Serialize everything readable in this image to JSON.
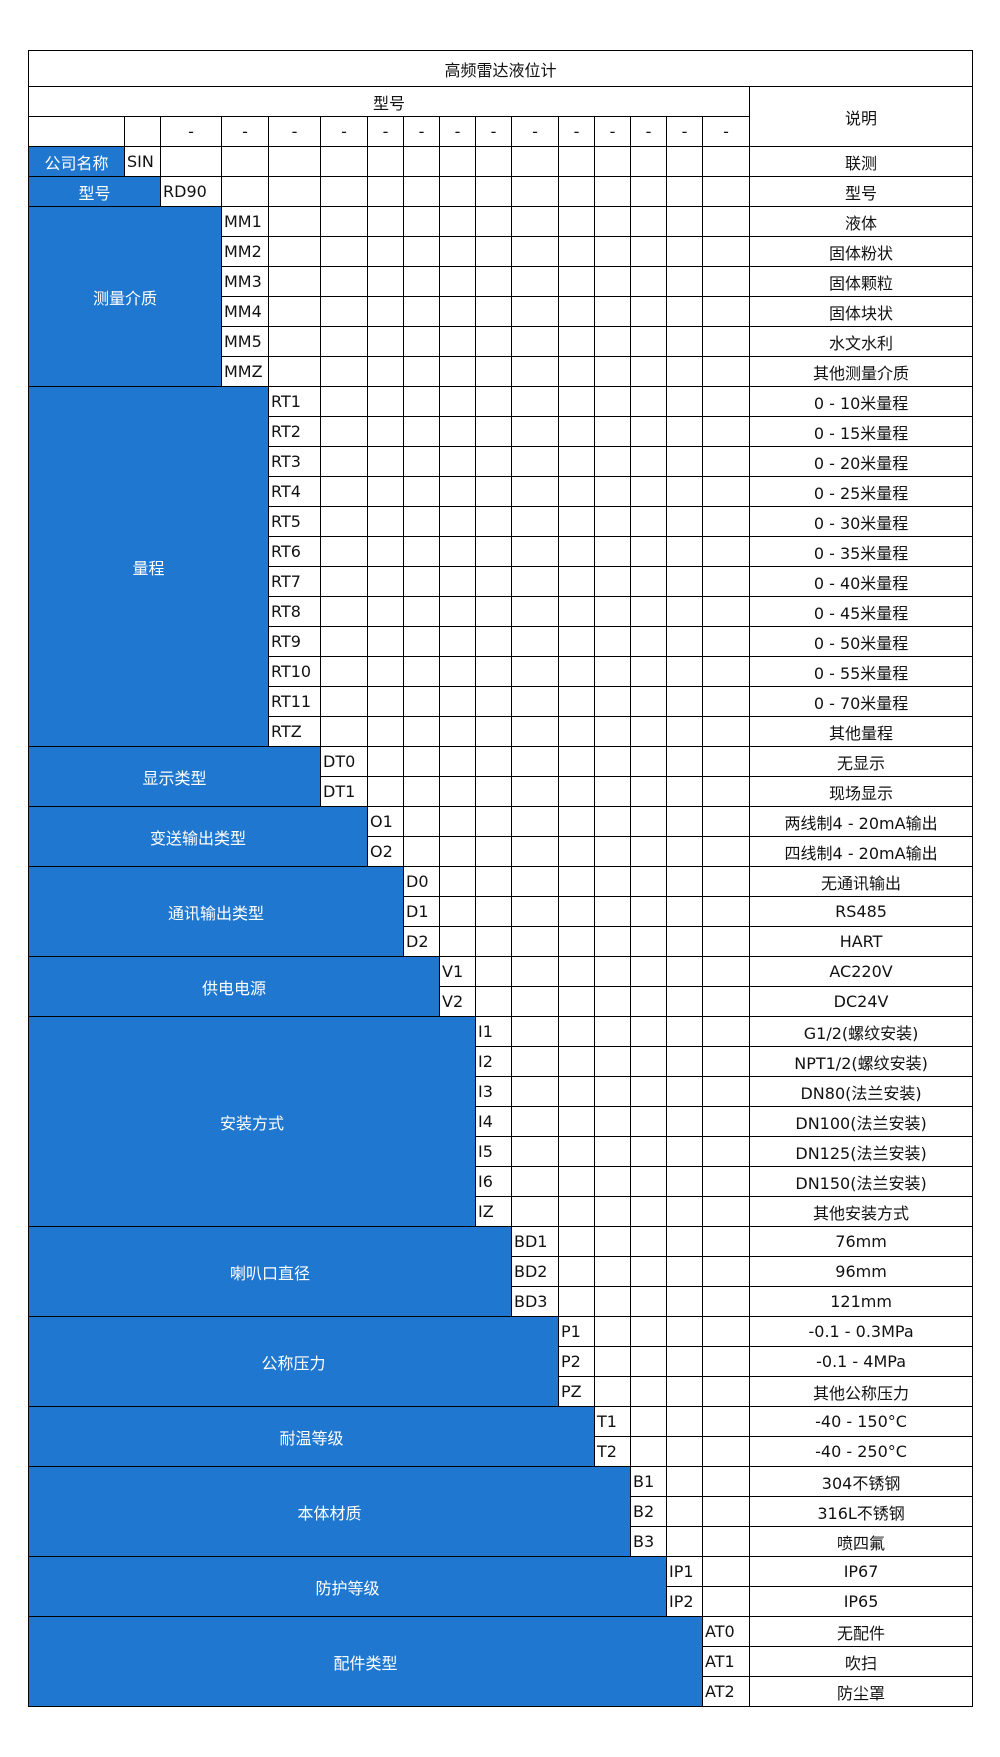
{
  "title": "高频雷达液位计",
  "header": {
    "model_label": "型号",
    "desc_label": "说明",
    "dash": "-"
  },
  "colors": {
    "label_bg": "#1f77d0",
    "border": "#000000"
  },
  "company": {
    "label": "公司名称",
    "code": "SIN",
    "desc": "联测"
  },
  "model": {
    "label": "型号",
    "code": "RD90",
    "desc": "型号"
  },
  "groups": [
    {
      "label": "测量介质",
      "items": [
        {
          "code": "MM1",
          "desc": "液体"
        },
        {
          "code": "MM2",
          "desc": "固体粉状"
        },
        {
          "code": "MM3",
          "desc": "固体颗粒"
        },
        {
          "code": "MM4",
          "desc": "固体块状"
        },
        {
          "code": "MM5",
          "desc": "水文水利"
        },
        {
          "code": "MMZ",
          "desc": "其他测量介质"
        }
      ]
    },
    {
      "label": "量程",
      "items": [
        {
          "code": "RT1",
          "desc": "0 - 10米量程"
        },
        {
          "code": "RT2",
          "desc": "0 - 15米量程"
        },
        {
          "code": "RT3",
          "desc": "0 - 20米量程"
        },
        {
          "code": "RT4",
          "desc": "0 - 25米量程"
        },
        {
          "code": "RT5",
          "desc": "0 - 30米量程"
        },
        {
          "code": "RT6",
          "desc": "0 - 35米量程"
        },
        {
          "code": "RT7",
          "desc": "0 - 40米量程"
        },
        {
          "code": "RT8",
          "desc": "0 - 45米量程"
        },
        {
          "code": "RT9",
          "desc": "0 - 50米量程"
        },
        {
          "code": "RT10",
          "desc": "0 - 55米量程"
        },
        {
          "code": "RT11",
          "desc": "0 - 70米量程"
        },
        {
          "code": "RTZ",
          "desc": "其他量程"
        }
      ]
    },
    {
      "label": "显示类型",
      "items": [
        {
          "code": "DT0",
          "desc": "无显示"
        },
        {
          "code": "DT1",
          "desc": "现场显示"
        }
      ]
    },
    {
      "label": "变送输出类型",
      "items": [
        {
          "code": "O1",
          "desc": "两线制4 - 20mA输出"
        },
        {
          "code": "O2",
          "desc": "四线制4 - 20mA输出"
        }
      ]
    },
    {
      "label": "通讯输出类型",
      "items": [
        {
          "code": "D0",
          "desc": "无通讯输出"
        },
        {
          "code": "D1",
          "desc": "RS485"
        },
        {
          "code": "D2",
          "desc": "HART"
        }
      ]
    },
    {
      "label": "供电电源",
      "items": [
        {
          "code": "V1",
          "desc": "AC220V"
        },
        {
          "code": "V2",
          "desc": "DC24V"
        }
      ]
    },
    {
      "label": "安装方式",
      "items": [
        {
          "code": "I1",
          "desc": "G1/2(螺纹安装)"
        },
        {
          "code": "I2",
          "desc": "NPT1/2(螺纹安装)"
        },
        {
          "code": "I3",
          "desc": "DN80(法兰安装)"
        },
        {
          "code": "I4",
          "desc": "DN100(法兰安装)"
        },
        {
          "code": "I5",
          "desc": "DN125(法兰安装)"
        },
        {
          "code": "I6",
          "desc": "DN150(法兰安装)"
        },
        {
          "code": "IZ",
          "desc": "其他安装方式"
        }
      ]
    },
    {
      "label": "喇叭口直径",
      "items": [
        {
          "code": "BD1",
          "desc": "76mm"
        },
        {
          "code": "BD2",
          "desc": "96mm"
        },
        {
          "code": "BD3",
          "desc": "121mm"
        }
      ]
    },
    {
      "label": "公称压力",
      "items": [
        {
          "code": "P1",
          "desc": "-0.1 - 0.3MPa"
        },
        {
          "code": "P2",
          "desc": "-0.1 - 4MPa"
        },
        {
          "code": "PZ",
          "desc": "其他公称压力"
        }
      ]
    },
    {
      "label": "耐温等级",
      "items": [
        {
          "code": "T1",
          "desc": "-40 - 150°C"
        },
        {
          "code": "T2",
          "desc": "-40 - 250°C"
        }
      ]
    },
    {
      "label": "本体材质",
      "items": [
        {
          "code": "B1",
          "desc": "304不锈钢"
        },
        {
          "code": "B2",
          "desc": "316L不锈钢"
        },
        {
          "code": "B3",
          "desc": "喷四氟"
        }
      ]
    },
    {
      "label": "防护等级",
      "items": [
        {
          "code": "IP1",
          "desc": "IP67"
        },
        {
          "code": "IP2",
          "desc": "IP65"
        }
      ]
    },
    {
      "label": "配件类型",
      "items": [
        {
          "code": "AT0",
          "desc": "无配件"
        },
        {
          "code": "AT1",
          "desc": "吹扫"
        },
        {
          "code": "AT2",
          "desc": "防尘罩"
        }
      ]
    }
  ]
}
